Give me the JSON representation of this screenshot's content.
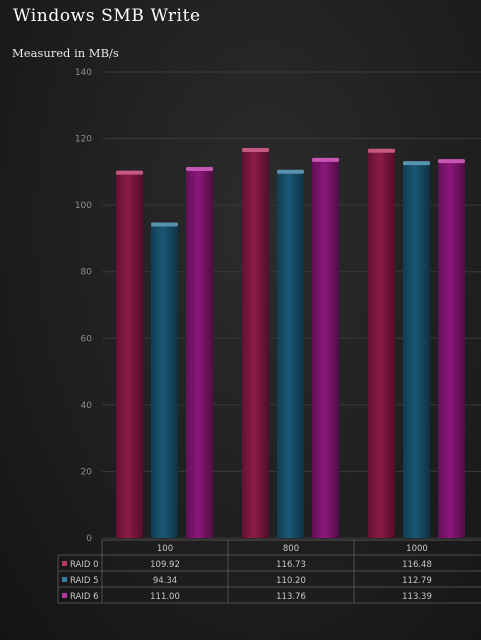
{
  "title": "Windows SMB Write",
  "subtitle": "Measured in MB/s",
  "chart_data": {
    "type": "bar",
    "title": "Windows SMB Write",
    "subtitle": "Measured in MB/s",
    "categories": [
      "100",
      "800",
      "1000"
    ],
    "series": [
      {
        "name": "RAID 0",
        "values": [
          109.92,
          116.73,
          116.48
        ],
        "color": "#b0215a"
      },
      {
        "name": "RAID 5",
        "values": [
          94.34,
          110.2,
          112.79
        ],
        "color": "#1f6e93"
      },
      {
        "name": "RAID 6",
        "values": [
          111.0,
          113.76,
          113.39
        ],
        "color": "#b11d9a"
      }
    ],
    "value_labels": [
      [
        "109.92",
        "116.73",
        "116.48"
      ],
      [
        "94.34",
        "110.20",
        "112.79"
      ],
      [
        "111.00",
        "113.76",
        "113.39"
      ]
    ],
    "yticks": [
      "0",
      "20",
      "40",
      "60",
      "80",
      "100",
      "120",
      "140"
    ],
    "ylim": [
      0,
      140
    ],
    "grid": true,
    "legend": "data table below chart"
  }
}
